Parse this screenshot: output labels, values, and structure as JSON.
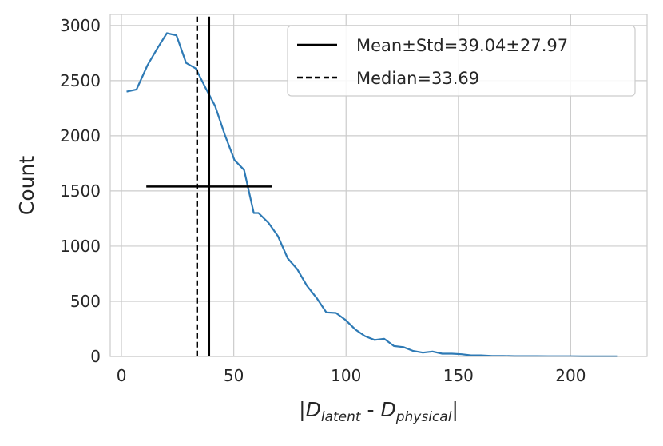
{
  "chart_data": {
    "type": "line",
    "title": "",
    "xlabel": {
      "open": "|",
      "d1": "D",
      "sub1": "latent",
      "sep": " - ",
      "d2": "D",
      "sub2": "physical",
      "close": "|"
    },
    "ylabel": "Count",
    "xlim": [
      -5,
      234
    ],
    "ylim": [
      0,
      3100
    ],
    "xticks": [
      0,
      50,
      100,
      150,
      200
    ],
    "yticks": [
      0,
      500,
      1000,
      1500,
      2000,
      2500,
      3000
    ],
    "grid": true,
    "legend_position": "top-right",
    "series": [
      {
        "color": "#2e7ab5",
        "x": [
          2.3,
          6.7,
          11.6,
          15.9,
          20.2,
          24.5,
          28.8,
          33.1,
          37.3,
          41.7,
          46.0,
          50.3,
          54.6,
          58.9,
          61.0,
          65.5,
          69.7,
          74.0,
          78.3,
          82.6,
          86.9,
          91.2,
          95.5,
          99.8,
          104.1,
          108.4,
          112.7,
          117.0,
          121.3,
          125.6,
          129.9,
          134.2,
          138.5,
          142.8,
          147.1,
          151.4,
          155.7,
          160.0,
          165.0,
          170.0,
          175.0,
          180.0,
          185.0,
          190.0,
          195.0,
          200.0,
          205.0,
          210.0,
          215.0,
          221.0
        ],
        "y": [
          2400,
          2420,
          2640,
          2790,
          2930,
          2910,
          2660,
          2610,
          2440,
          2270,
          2010,
          1780,
          1690,
          1300,
          1300,
          1210,
          1090,
          890,
          790,
          640,
          530,
          400,
          395,
          330,
          245,
          185,
          150,
          160,
          95,
          85,
          50,
          35,
          45,
          25,
          25,
          20,
          10,
          10,
          5,
          5,
          3,
          3,
          3,
          2,
          2,
          2,
          1,
          1,
          1,
          1
        ]
      }
    ],
    "lines": [
      {
        "kind": "mean",
        "x": 39.04,
        "style": "solid",
        "color": "#000000",
        "legend": "Mean±Std=39.04±27.97"
      },
      {
        "kind": "median",
        "x": 33.69,
        "style": "dashed",
        "color": "#000000",
        "legend": "Median=33.69"
      }
    ],
    "std_bar": {
      "center": 39.04,
      "std": 27.97,
      "y": 1540
    },
    "legend": [
      {
        "label": "Mean±Std=39.04±27.97",
        "style": "solid"
      },
      {
        "label": "Median=33.69",
        "style": "dashed"
      }
    ]
  }
}
